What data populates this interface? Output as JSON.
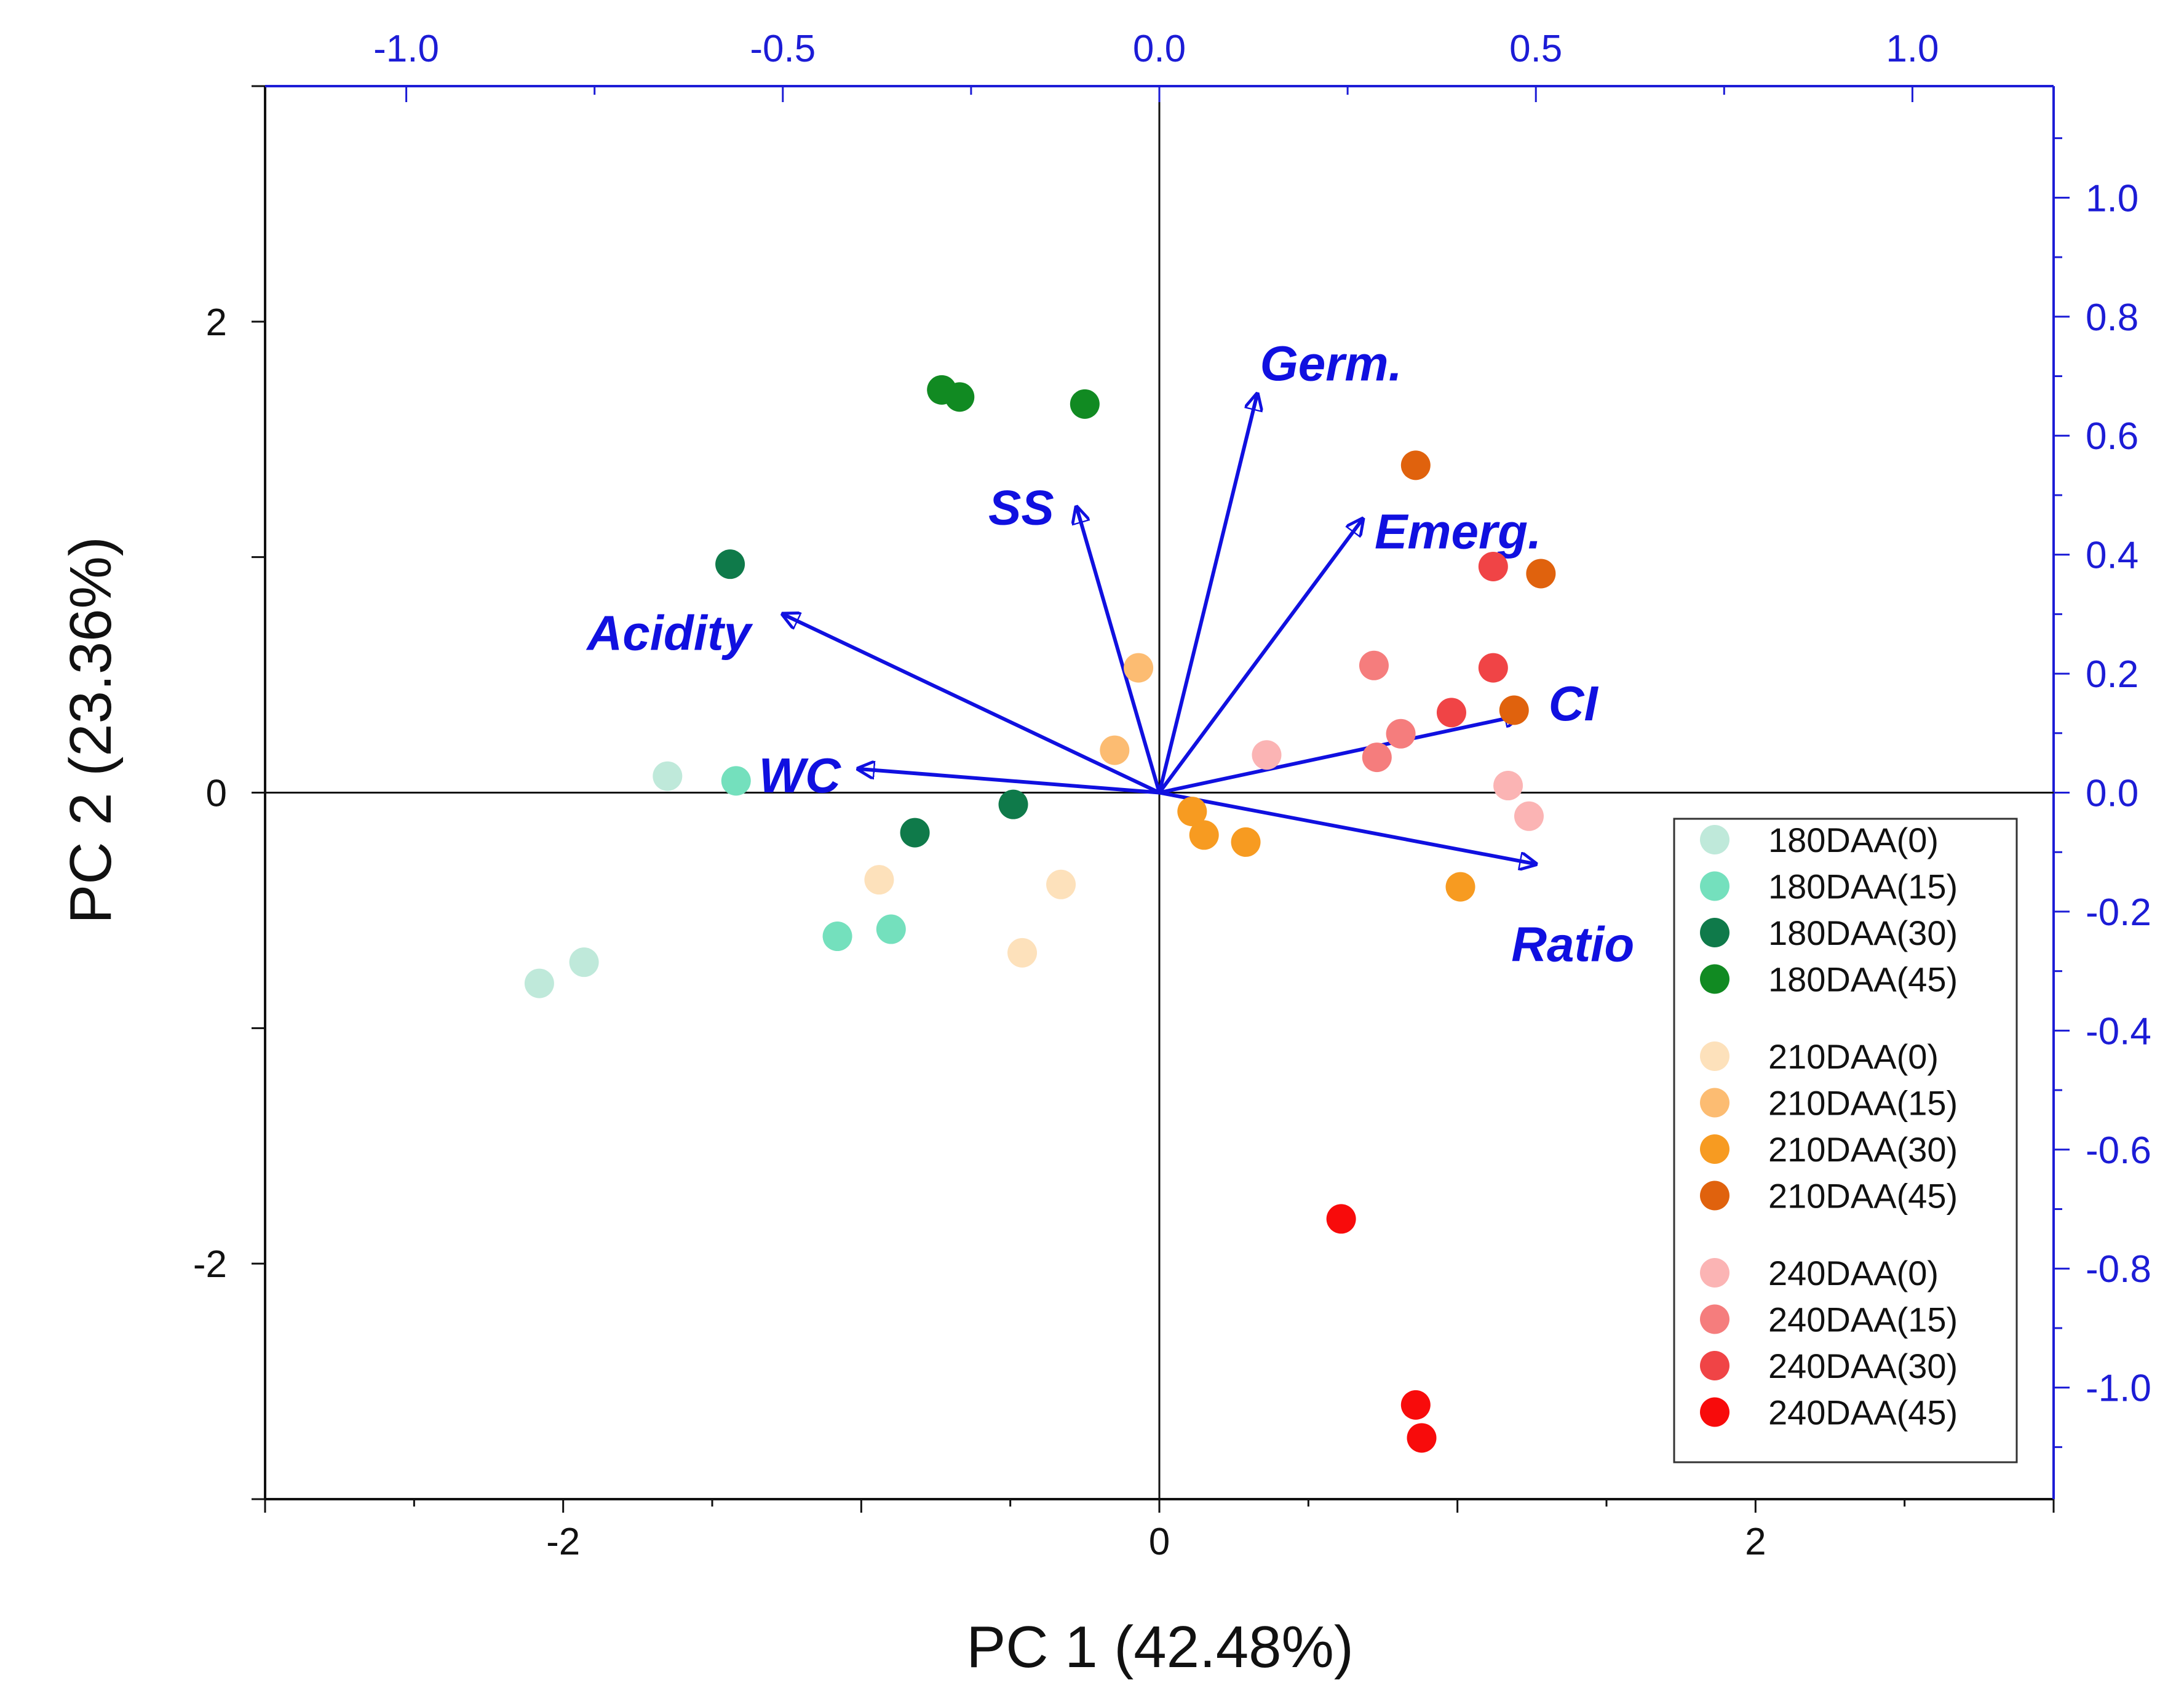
{
  "chart_data": {
    "type": "scatter",
    "subtype": "pca-biplot",
    "xlabel": "PC 1 (42.48%)",
    "ylabel": "PC 2 (23.36%)",
    "score_axes": {
      "xlim": [
        -3.0,
        3.0
      ],
      "ylim": [
        -3.0,
        3.0
      ],
      "x_ticks": [
        -2,
        0,
        2
      ],
      "y_ticks": [
        -2,
        0,
        2
      ],
      "x_tick_labels": [
        "-2",
        "0",
        "2"
      ],
      "y_tick_labels": [
        "-2",
        "0",
        "2"
      ]
    },
    "loading_axes": {
      "xlim": [
        -1.1875,
        1.1875
      ],
      "ylim": [
        -1.1875,
        1.1875
      ],
      "x_ticks": [
        -1.0,
        -0.5,
        0.0,
        0.5,
        1.0
      ],
      "x_tick_labels": [
        "-1.0",
        "-0.5",
        "0.0",
        "0.5",
        "1.0"
      ],
      "y_ticks": [
        1.0,
        0.8,
        0.6,
        0.4,
        0.2,
        0.0,
        -0.2,
        -0.4,
        -0.6,
        -0.8,
        -1.0
      ],
      "y_tick_labels": [
        "1.0",
        "0.8",
        "0.6",
        "0.4",
        "0.2",
        "0.0",
        "-0.2",
        "-0.4",
        "-0.6",
        "-0.8",
        "-1.0"
      ]
    },
    "loadings": [
      {
        "name": "Germ.",
        "x": 0.13,
        "y": 0.67
      },
      {
        "name": "SS",
        "x": -0.11,
        "y": 0.48
      },
      {
        "name": "Emerg.",
        "x": 0.27,
        "y": 0.46
      },
      {
        "name": "Acidity",
        "x": -0.5,
        "y": 0.3
      },
      {
        "name": "CI",
        "x": 0.48,
        "y": 0.13
      },
      {
        "name": "WC",
        "x": -0.4,
        "y": 0.04
      },
      {
        "name": "Ratio",
        "x": 0.5,
        "y": -0.12
      }
    ],
    "series": [
      {
        "name": "180DAA(0)",
        "color": "#bfe9da",
        "points": [
          [
            -1.65,
            0.07
          ],
          [
            -1.93,
            -0.72
          ],
          [
            -2.08,
            -0.81
          ]
        ]
      },
      {
        "name": "180DAA(15)",
        "color": "#74e0bd",
        "points": [
          [
            -1.42,
            0.05
          ],
          [
            -1.08,
            -0.61
          ],
          [
            -0.9,
            -0.58
          ]
        ]
      },
      {
        "name": "180DAA(30)",
        "color": "#0f7a4a",
        "points": [
          [
            -1.44,
            0.97
          ],
          [
            -0.82,
            -0.17
          ],
          [
            -0.49,
            -0.05
          ]
        ]
      },
      {
        "name": "180DAA(45)",
        "color": "#118a22",
        "points": [
          [
            -0.73,
            1.71
          ],
          [
            -0.67,
            1.68
          ],
          [
            -0.25,
            1.65
          ]
        ]
      },
      {
        "name": "210DAA(0)",
        "color": "#fde1bb",
        "points": [
          [
            -0.94,
            -0.37
          ],
          [
            -0.33,
            -0.39
          ],
          [
            -0.46,
            -0.68
          ]
        ]
      },
      {
        "name": "210DAA(15)",
        "color": "#fcbc72",
        "points": [
          [
            -0.07,
            0.53
          ],
          [
            -0.15,
            0.18
          ]
        ]
      },
      {
        "name": "210DAA(30)",
        "color": "#f79b21",
        "points": [
          [
            0.11,
            -0.08
          ],
          [
            0.15,
            -0.18
          ],
          [
            0.29,
            -0.21
          ],
          [
            1.01,
            -0.4
          ]
        ]
      },
      {
        "name": "210DAA(45)",
        "color": "#e0620d",
        "points": [
          [
            0.86,
            1.39
          ],
          [
            1.28,
            0.93
          ],
          [
            1.19,
            0.35
          ]
        ]
      },
      {
        "name": "240DAA(0)",
        "color": "#fbb4b4",
        "points": [
          [
            0.36,
            0.16
          ],
          [
            1.17,
            0.03
          ],
          [
            1.24,
            -0.1
          ]
        ]
      },
      {
        "name": "240DAA(15)",
        "color": "#f57d7d",
        "points": [
          [
            0.72,
            0.54
          ],
          [
            0.81,
            0.25
          ],
          [
            0.73,
            0.15
          ]
        ]
      },
      {
        "name": "240DAA(30)",
        "color": "#f04446",
        "points": [
          [
            1.12,
            0.96
          ],
          [
            1.12,
            0.53
          ],
          [
            0.98,
            0.34
          ]
        ]
      },
      {
        "name": "240DAA(45)",
        "color": "#f80b0b",
        "points": [
          [
            0.61,
            -1.81
          ],
          [
            0.86,
            -2.6
          ],
          [
            0.88,
            -2.74
          ]
        ]
      }
    ],
    "legend_position": "lower-right",
    "grid": false,
    "colors": {
      "loading": "#1010e0",
      "axis_secondary": "#1c1cd6",
      "axis_primary": "#111111"
    }
  }
}
